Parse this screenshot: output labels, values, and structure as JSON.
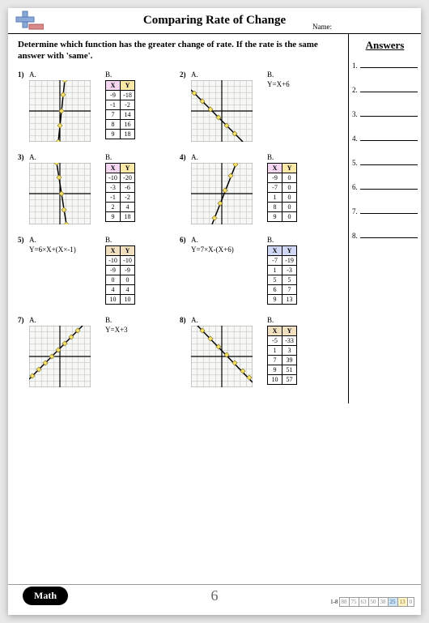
{
  "header": {
    "title": "Comparing Rate of Change",
    "name_label": "Name:"
  },
  "instructions": "Determine which function has the greater change of rate. If the rate is the same answer with 'same'.",
  "answers_title": "Answers",
  "answers_count": 8,
  "page_number": "6",
  "math_label": "Math",
  "score": {
    "label": "1-8",
    "cells": [
      "88",
      "75",
      "63",
      "50",
      "38",
      "25",
      "13",
      "0"
    ],
    "highlight_index": 5,
    "highlight2_index": 6
  },
  "graph": {
    "size": 76,
    "grid_n": 10,
    "bg": "#f7f7f5",
    "grid_color": "#bbb",
    "axis_color": "#000",
    "line_color": "#000",
    "point_fill": "#f7e36a",
    "point_stroke": "#8a7a20"
  },
  "problems": [
    {
      "num": "1)",
      "a": {
        "type": "graph",
        "line": [
          [
            36,
            76
          ],
          [
            44,
            0
          ]
        ],
        "pts": [
          [
            36,
            76
          ],
          [
            38,
            56
          ],
          [
            40,
            38
          ],
          [
            42,
            18
          ],
          [
            44,
            0
          ]
        ]
      },
      "b": {
        "type": "table",
        "style": "default",
        "rows": [
          [
            "-9",
            "-18"
          ],
          [
            "-1",
            "-2"
          ],
          [
            "7",
            "14"
          ],
          [
            "8",
            "16"
          ],
          [
            "9",
            "18"
          ]
        ]
      }
    },
    {
      "num": "2)",
      "a": {
        "type": "graph",
        "line": [
          [
            0,
            12
          ],
          [
            64,
            76
          ]
        ],
        "pts": [
          [
            4,
            16
          ],
          [
            14,
            26
          ],
          [
            24,
            36
          ],
          [
            34,
            46
          ],
          [
            44,
            56
          ],
          [
            54,
            66
          ]
        ]
      },
      "b": {
        "type": "eq",
        "text": "Y=X+6"
      }
    },
    {
      "num": "3)",
      "a": {
        "type": "graph",
        "line": [
          [
            34,
            0
          ],
          [
            46,
            76
          ]
        ],
        "pts": [
          [
            34,
            0
          ],
          [
            37,
            18
          ],
          [
            40,
            38
          ],
          [
            43,
            58
          ],
          [
            46,
            76
          ]
        ]
      },
      "b": {
        "type": "table",
        "style": "default",
        "rows": [
          [
            "-10",
            "-20"
          ],
          [
            "-3",
            "-6"
          ],
          [
            "-1",
            "-2"
          ],
          [
            "2",
            "4"
          ],
          [
            "9",
            "18"
          ]
        ]
      }
    },
    {
      "num": "4)",
      "a": {
        "type": "graph",
        "line": [
          [
            26,
            76
          ],
          [
            56,
            0
          ]
        ],
        "pts": [
          [
            29,
            68
          ],
          [
            36,
            50
          ],
          [
            42,
            34
          ],
          [
            49,
            16
          ],
          [
            55,
            2
          ]
        ]
      },
      "b": {
        "type": "table",
        "style": "default",
        "rows": [
          [
            "-9",
            "0"
          ],
          [
            "-7",
            "0"
          ],
          [
            "1",
            "0"
          ],
          [
            "8",
            "0"
          ],
          [
            "9",
            "0"
          ]
        ]
      }
    },
    {
      "num": "5)",
      "a": {
        "type": "eq",
        "text": "Y=6×X+(X×-1)"
      },
      "b": {
        "type": "table",
        "style": "tan",
        "rows": [
          [
            "-10",
            "-10"
          ],
          [
            "-9",
            "-9"
          ],
          [
            "0",
            "0"
          ],
          [
            "4",
            "4"
          ],
          [
            "10",
            "10"
          ]
        ]
      }
    },
    {
      "num": "6)",
      "a": {
        "type": "eq",
        "text": "Y=7×X-(X+6)"
      },
      "b": {
        "type": "table",
        "style": "blue",
        "rows": [
          [
            "-7",
            "-19"
          ],
          [
            "1",
            "-3"
          ],
          [
            "5",
            "5"
          ],
          [
            "6",
            "7"
          ],
          [
            "9",
            "13"
          ]
        ]
      }
    },
    {
      "num": "7)",
      "a": {
        "type": "graph",
        "line": [
          [
            0,
            66
          ],
          [
            66,
            0
          ]
        ],
        "pts": [
          [
            4,
            62
          ],
          [
            12,
            54
          ],
          [
            20,
            46
          ],
          [
            28,
            38
          ],
          [
            36,
            30
          ],
          [
            44,
            22
          ],
          [
            52,
            14
          ],
          [
            60,
            6
          ]
        ]
      },
      "b": {
        "type": "eq",
        "text": "Y=X+3"
      }
    },
    {
      "num": "8)",
      "a": {
        "type": "graph",
        "line": [
          [
            8,
            0
          ],
          [
            76,
            70
          ]
        ],
        "pts": [
          [
            14,
            6
          ],
          [
            24,
            16
          ],
          [
            34,
            26
          ],
          [
            44,
            36
          ],
          [
            54,
            46
          ],
          [
            64,
            56
          ],
          [
            72,
            64
          ]
        ]
      },
      "b": {
        "type": "table",
        "style": "tan",
        "rows": [
          [
            "-5",
            "-33"
          ],
          [
            "1",
            "3"
          ],
          [
            "7",
            "39"
          ],
          [
            "9",
            "51"
          ],
          [
            "10",
            "57"
          ]
        ]
      }
    }
  ]
}
